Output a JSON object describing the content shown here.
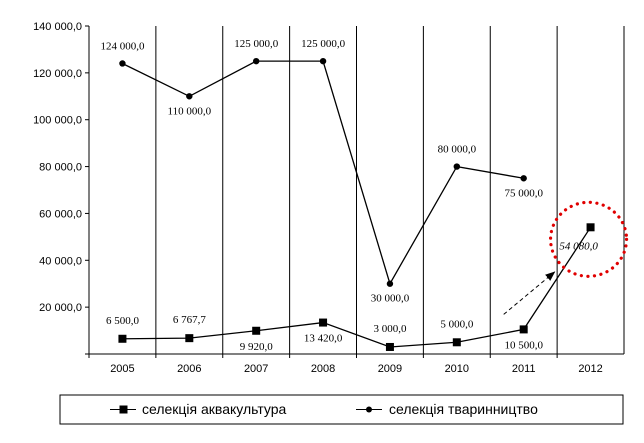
{
  "chart_data": {
    "type": "line",
    "x": [
      "2005",
      "2006",
      "2007",
      "2008",
      "2009",
      "2010",
      "2011",
      "2012"
    ],
    "ylim": [
      0,
      140000
    ],
    "yticks": [
      "20 000,0",
      "40 000,0",
      "60 000,0",
      "80 000,0",
      "100 000,0",
      "120 000,0",
      "140 000,0"
    ],
    "ytick_values": [
      20000,
      40000,
      60000,
      80000,
      100000,
      120000,
      140000
    ],
    "grid": "vertical",
    "legend_position": "bottom",
    "series": [
      {
        "name": "селекція аквакультура",
        "marker": "square",
        "values": [
          6500,
          6767.7,
          9920,
          13420,
          3000,
          5000,
          10500,
          54080
        ],
        "labels": [
          "6 500,0",
          "6 767,7",
          "9 920,0",
          "13 420,0",
          "3 000,0",
          "5 000,0",
          "10 500,0",
          "54 080,0"
        ]
      },
      {
        "name": "селекція тваринництво",
        "marker": "circle",
        "values": [
          124000,
          110000,
          125000,
          125000,
          30000,
          80000,
          75000,
          null
        ],
        "labels": [
          "124 000,0",
          "110 000,0",
          "125 000,0",
          "125 000,0",
          "30 000,0",
          "80 000,0",
          "75 000,0",
          null
        ]
      }
    ],
    "annotations": {
      "highlight_circle_color": "#e00000",
      "arrow": "dashed arrow from 2011 to 2012 (forecast)"
    }
  }
}
